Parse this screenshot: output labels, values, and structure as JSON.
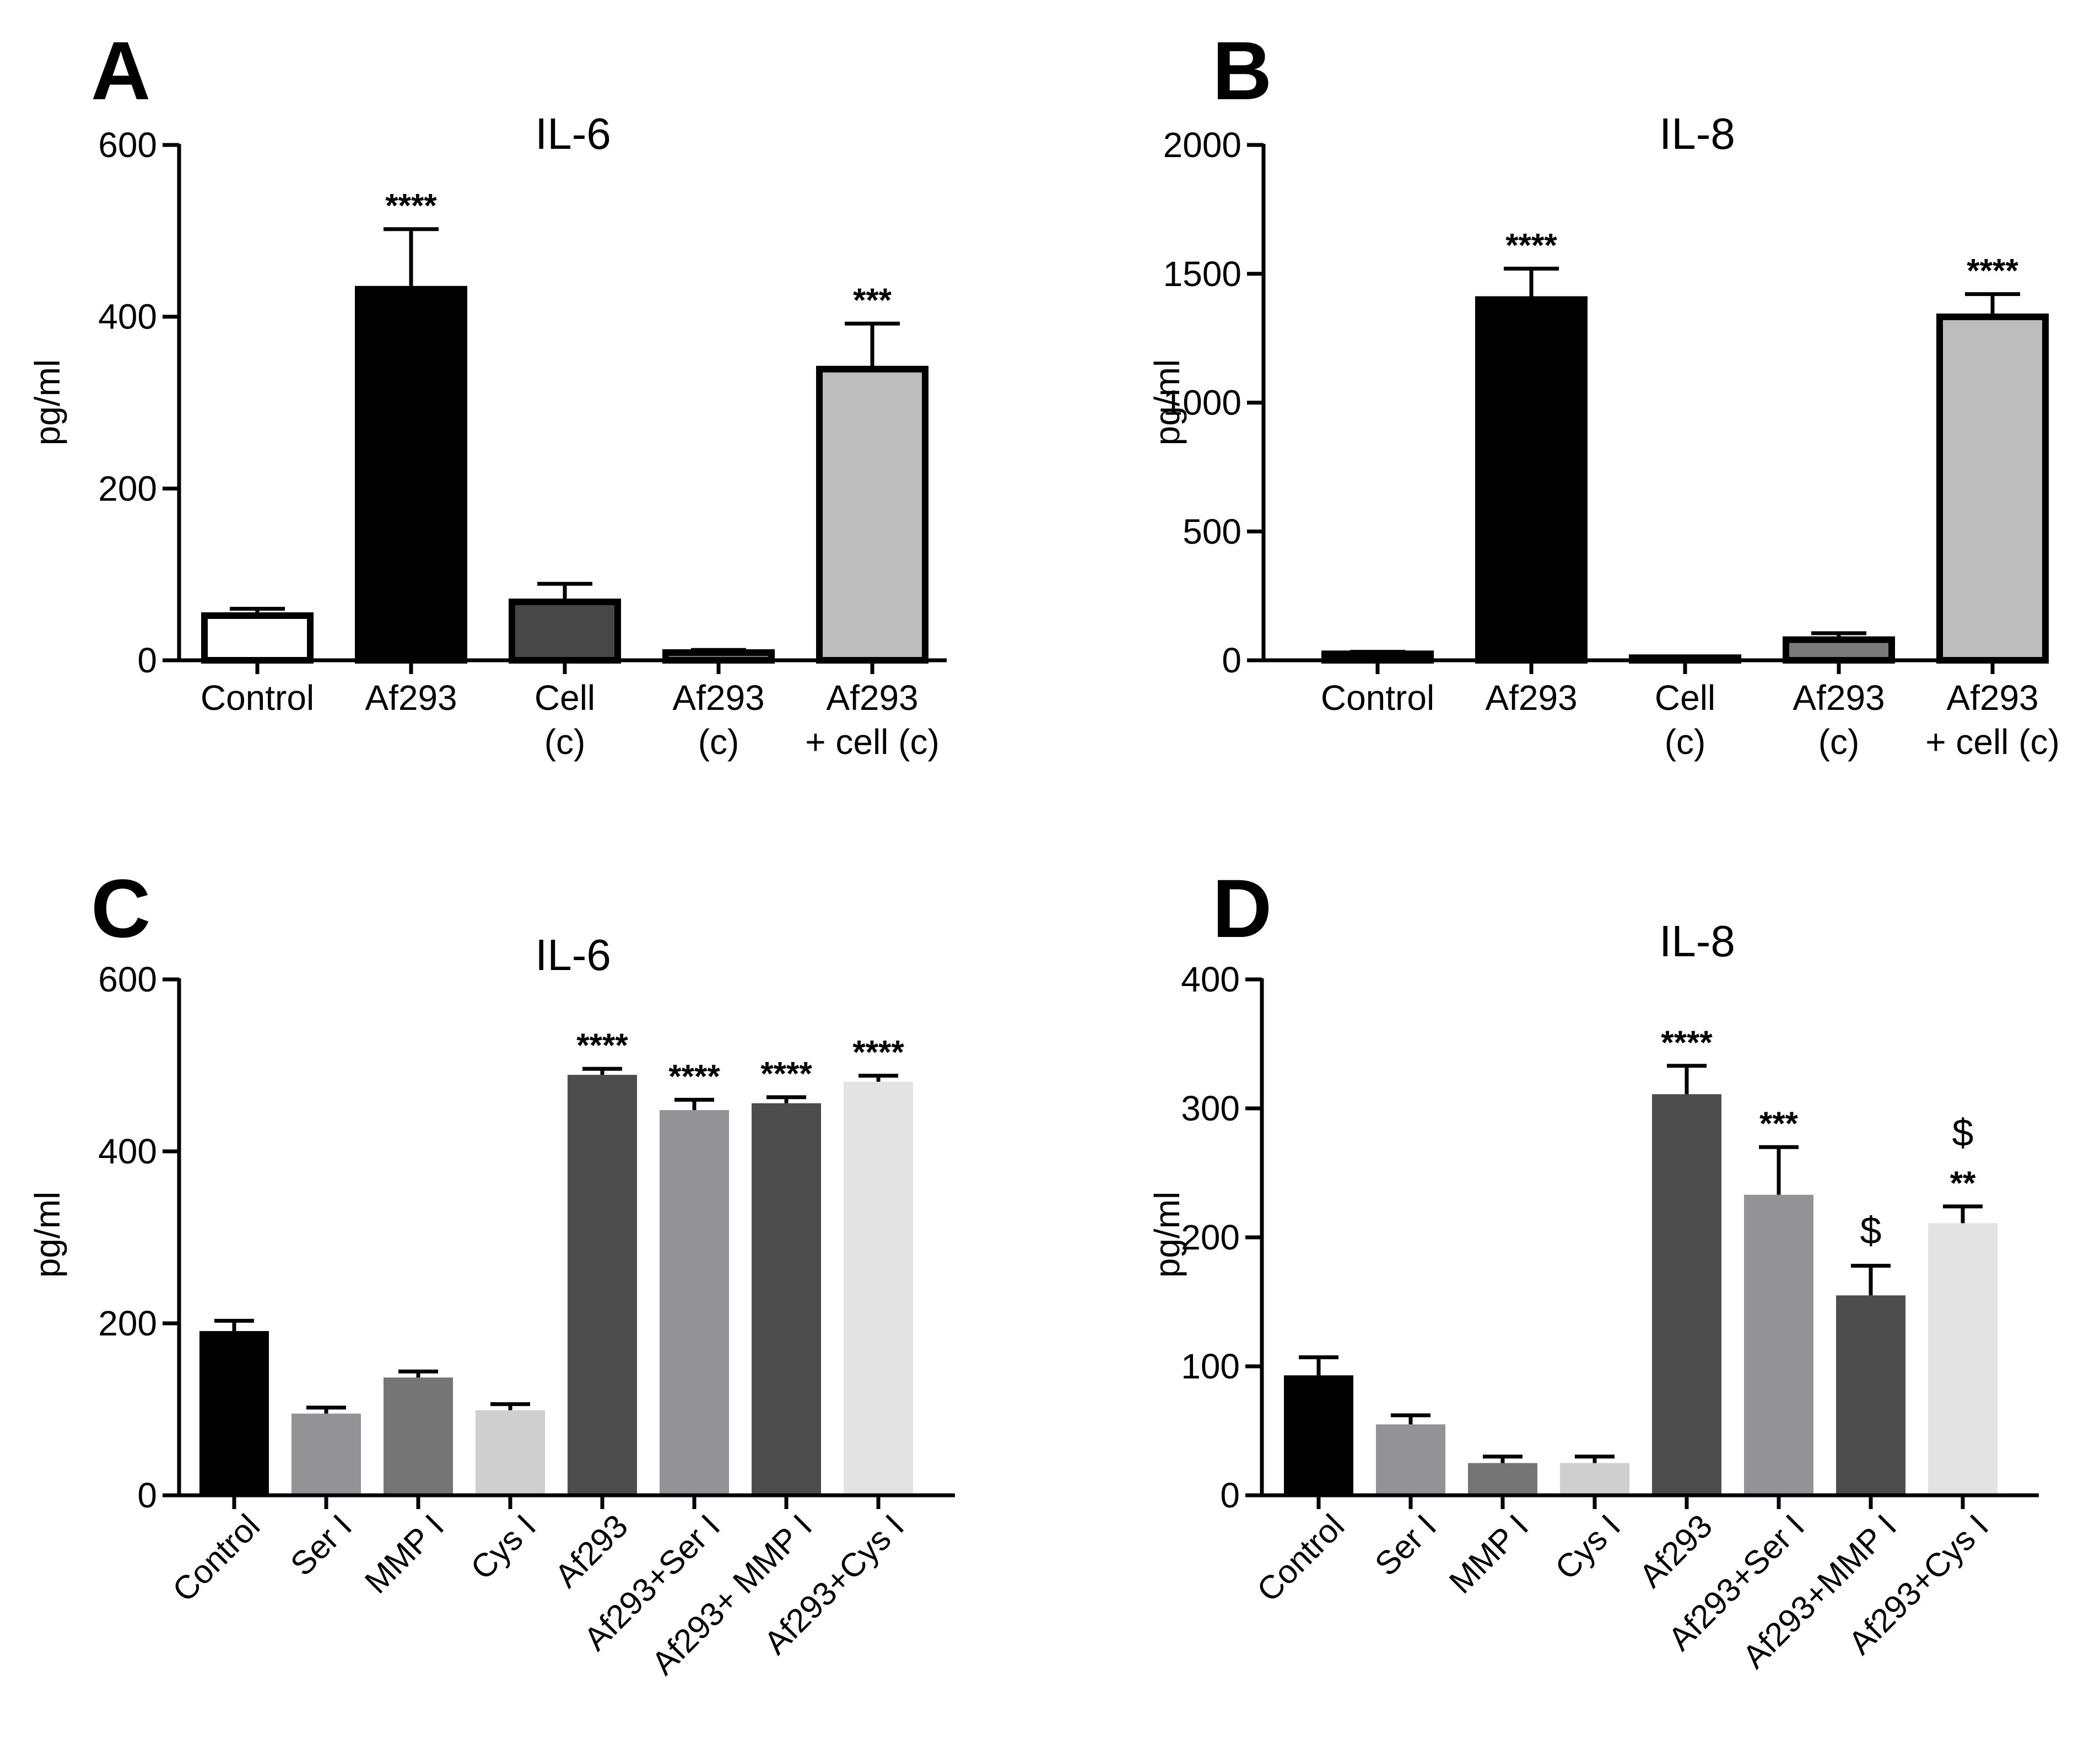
{
  "chart_data": [
    {
      "id": "A",
      "type": "bar",
      "panel_label": "A",
      "title": "IL-6",
      "ylabel": "pg/ml",
      "xlabel": "",
      "ylim": [
        0,
        600
      ],
      "yticks": [
        0,
        200,
        400,
        600
      ],
      "categories": [
        "Control",
        "Af293",
        "Cell\n(c)",
        "Af293\n(c)",
        "Af293\n+ cell (c)"
      ],
      "values": [
        52,
        432,
        68,
        9,
        339
      ],
      "errors": [
        8,
        70,
        21,
        3,
        53
      ],
      "significance": [
        "",
        "****",
        "",
        "",
        "***"
      ],
      "bar_colors": [
        "#ffffff",
        "#000000",
        "#474747",
        "#7a7a7a",
        "#bdbdbd"
      ],
      "bar_style": "outlined",
      "label_style": "horizontal"
    },
    {
      "id": "B",
      "type": "bar",
      "panel_label": "B",
      "title": "IL-8",
      "ylabel": "pg/ml",
      "xlabel": "",
      "ylim": [
        0,
        2000
      ],
      "yticks": [
        0,
        500,
        1000,
        1500,
        2000
      ],
      "categories": [
        "Control",
        "Af293",
        "Cell\n(c)",
        "Af293\n(c)",
        "Af293\n+ cell (c)"
      ],
      "values": [
        25,
        1400,
        10,
        80,
        1333
      ],
      "errors": [
        8,
        120,
        5,
        25,
        88
      ],
      "significance": [
        "",
        "****",
        "",
        "",
        "****"
      ],
      "bar_colors": [
        "#ffffff",
        "#000000",
        "#474747",
        "#7a7a7a",
        "#bdbdbd"
      ],
      "bar_style": "outlined",
      "label_style": "horizontal"
    },
    {
      "id": "C",
      "type": "bar",
      "panel_label": "C",
      "title": "IL-6",
      "ylabel": "pg/ml",
      "xlabel": "",
      "ylim": [
        0,
        600
      ],
      "yticks": [
        0,
        200,
        400,
        600
      ],
      "categories": [
        "Control",
        "Ser I",
        "MMP I",
        "Cys I",
        "Af293",
        "Af293+Ser I",
        "Af293+ MMP I",
        "Af293+Cys I"
      ],
      "values": [
        191,
        95,
        137,
        99,
        489,
        448,
        456,
        481
      ],
      "errors": [
        12,
        7,
        7,
        7,
        7,
        12,
        7,
        7
      ],
      "significance": [
        "",
        "",
        "",
        "",
        "****",
        "****",
        "****",
        "****"
      ],
      "bar_colors": [
        "#000000",
        "#929297",
        "#757575",
        "#cfcfcf",
        "#4d4d4d",
        "#929297",
        "#4d4d4d",
        "#e3e3e3"
      ],
      "bar_style": "filled",
      "label_style": "rotated"
    },
    {
      "id": "D",
      "type": "bar",
      "panel_label": "D",
      "title": "IL-8",
      "ylabel": "pg/ml",
      "xlabel": "",
      "ylim": [
        0,
        400
      ],
      "yticks": [
        0,
        100,
        200,
        300,
        400
      ],
      "categories": [
        "Control",
        "Ser I",
        "MMP I",
        "Cys I",
        "Af293",
        "Af293+Ser I",
        "Af293+MMP I",
        "Af293+Cys I"
      ],
      "values": [
        93,
        55,
        25,
        25,
        311,
        233,
        155,
        211
      ],
      "errors": [
        14,
        7,
        5,
        5,
        22,
        37,
        23,
        13
      ],
      "significance": [
        "",
        "",
        "",
        "",
        "****",
        "***",
        "$",
        "**"
      ],
      "significance_extra": [
        "",
        "",
        "",
        "",
        "",
        "",
        "",
        "$"
      ],
      "bar_colors": [
        "#000000",
        "#929297",
        "#757575",
        "#cfcfcf",
        "#4d4d4d",
        "#929297",
        "#4d4d4d",
        "#e3e3e3"
      ],
      "bar_style": "filled",
      "label_style": "rotated"
    }
  ]
}
